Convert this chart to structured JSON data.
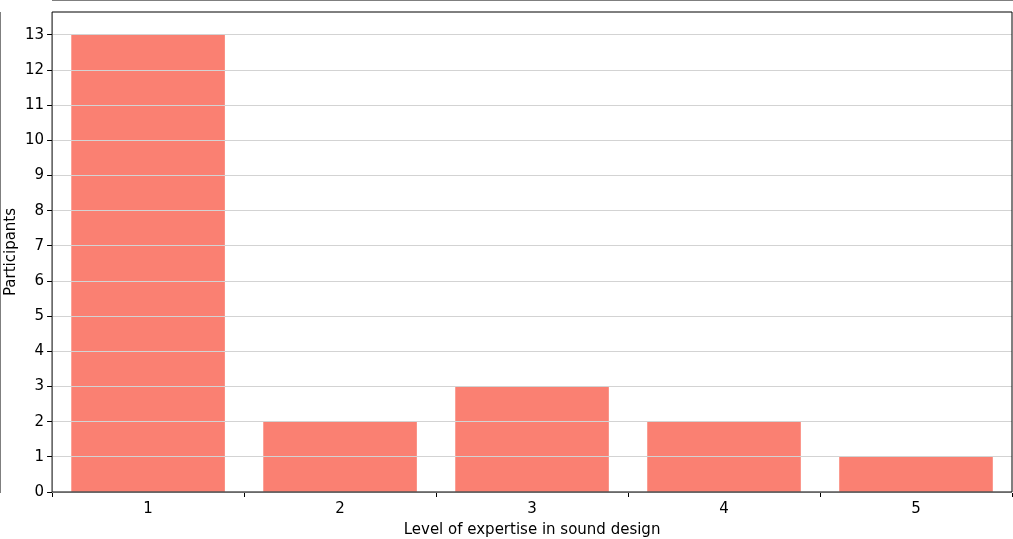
{
  "chart_data": {
    "type": "bar",
    "xlabel": "Level of expertise in sound design",
    "ylabel": "Participants",
    "categories": [
      "1",
      "2",
      "3",
      "4",
      "5"
    ],
    "values": [
      13,
      2,
      3,
      2,
      1
    ],
    "color": "#fa8072",
    "ylim": [
      0,
      13.65
    ],
    "yticks": [
      0,
      1,
      2,
      3,
      4,
      5,
      6,
      7,
      8,
      9,
      10,
      11,
      12,
      13
    ],
    "grid": "y",
    "legend": false
  }
}
